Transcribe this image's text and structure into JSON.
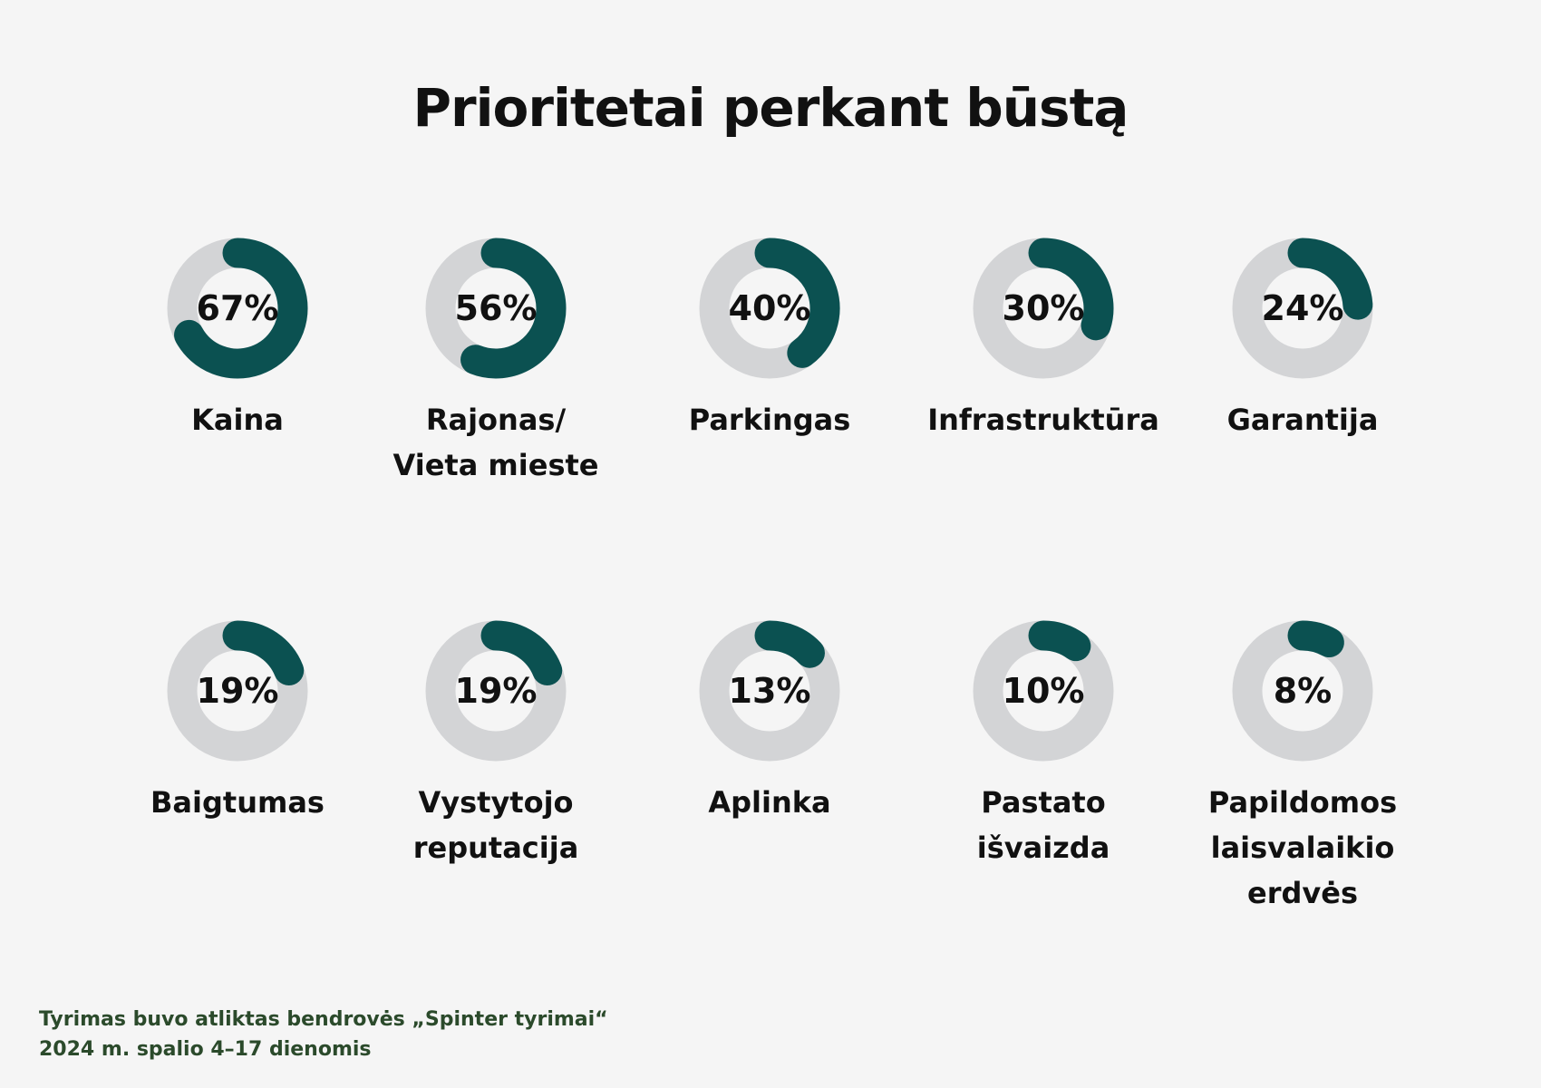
{
  "chart_data": {
    "type": "donut",
    "title": "Prioritetai perkant būstą",
    "categories": [
      "Kaina",
      "Rajonas/\nVieta mieste",
      "Parkingas",
      "Infrastruktūra",
      "Garantija",
      "Baigtumas",
      "Vystytojo\nreputacija",
      "Aplinka",
      "Pastato\nišvaizda",
      "Papildomos\nlaisvalaikio\nerdvės"
    ],
    "values": [
      67,
      56,
      40,
      30,
      24,
      19,
      19,
      13,
      10,
      8
    ],
    "value_labels": [
      "67%",
      "56%",
      "40%",
      "30%",
      "24%",
      "19%",
      "19%",
      "13%",
      "10%",
      "8%"
    ],
    "color": "#0b5151",
    "track_color": "#d3d4d6",
    "note": "Tyrimas buvo atliktas bendrovės „Spinter tyrimai“\n2024 m. spalio 4–17 dienomis"
  }
}
